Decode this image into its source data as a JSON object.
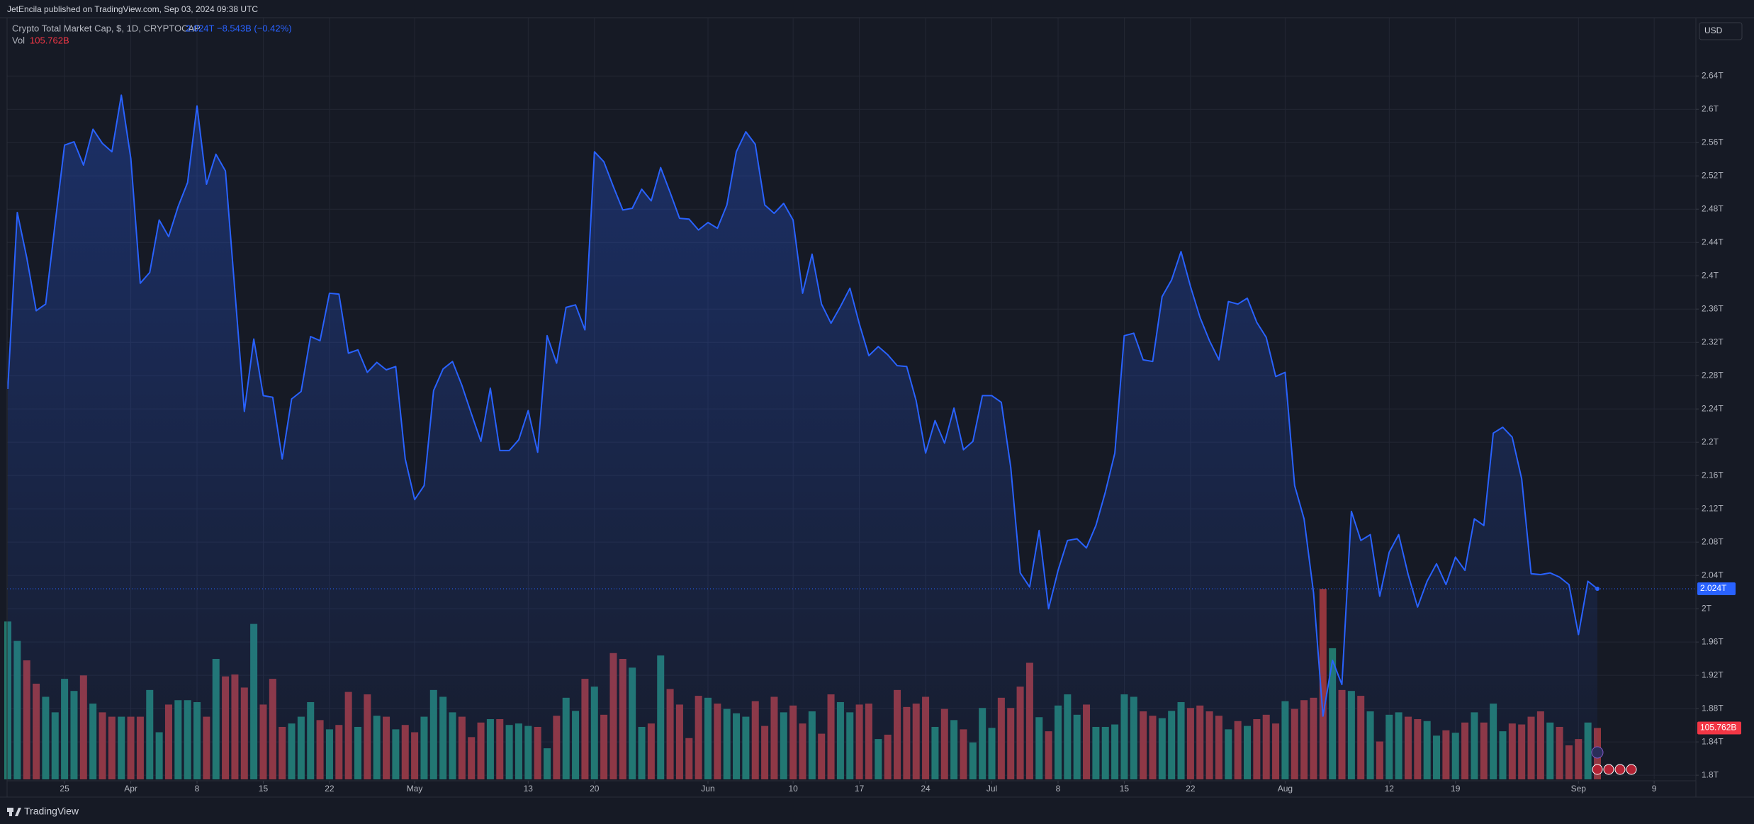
{
  "header": {
    "publisher": "JetEncila published on TradingView.com, Sep 03, 2024 09:38 UTC",
    "brand": "TradingView"
  },
  "chart_data": {
    "type": "area",
    "title": "Crypto Total Market Cap, $, 1D, CRYPTOCAP",
    "change": "−8.543B (−0.42%)",
    "currency": "USD",
    "grid": true,
    "x": [
      "2024-03-19",
      "2024-03-20",
      "2024-03-21",
      "2024-03-22",
      "2024-03-23",
      "2024-03-24",
      "2024-03-25",
      "2024-03-26",
      "2024-03-27",
      "2024-03-28",
      "2024-03-29",
      "2024-03-30",
      "2024-03-31",
      "2024-04-01",
      "2024-04-02",
      "2024-04-03",
      "2024-04-04",
      "2024-04-05",
      "2024-04-06",
      "2024-04-07",
      "2024-04-08",
      "2024-04-09",
      "2024-04-10",
      "2024-04-11",
      "2024-04-12",
      "2024-04-13",
      "2024-04-14",
      "2024-04-15",
      "2024-04-16",
      "2024-04-17",
      "2024-04-18",
      "2024-04-19",
      "2024-04-20",
      "2024-04-21",
      "2024-04-22",
      "2024-04-23",
      "2024-04-24",
      "2024-04-25",
      "2024-04-26",
      "2024-04-27",
      "2024-04-28",
      "2024-04-29",
      "2024-04-30",
      "2024-05-01",
      "2024-05-02",
      "2024-05-03",
      "2024-05-04",
      "2024-05-05",
      "2024-05-06",
      "2024-05-07",
      "2024-05-08",
      "2024-05-09",
      "2024-05-10",
      "2024-05-11",
      "2024-05-12",
      "2024-05-13",
      "2024-05-14",
      "2024-05-15",
      "2024-05-16",
      "2024-05-17",
      "2024-05-18",
      "2024-05-19",
      "2024-05-20",
      "2024-05-21",
      "2024-05-22",
      "2024-05-23",
      "2024-05-24",
      "2024-05-25",
      "2024-05-26",
      "2024-05-27",
      "2024-05-28",
      "2024-05-29",
      "2024-05-30",
      "2024-05-31",
      "2024-06-01",
      "2024-06-02",
      "2024-06-03",
      "2024-06-04",
      "2024-06-05",
      "2024-06-06",
      "2024-06-07",
      "2024-06-08",
      "2024-06-09",
      "2024-06-10",
      "2024-06-11",
      "2024-06-12",
      "2024-06-13",
      "2024-06-14",
      "2024-06-15",
      "2024-06-16",
      "2024-06-17",
      "2024-06-18",
      "2024-06-19",
      "2024-06-20",
      "2024-06-21",
      "2024-06-22",
      "2024-06-23",
      "2024-06-24",
      "2024-06-25",
      "2024-06-26",
      "2024-06-27",
      "2024-06-28",
      "2024-06-29",
      "2024-06-30",
      "2024-07-01",
      "2024-07-02",
      "2024-07-03",
      "2024-07-04",
      "2024-07-05",
      "2024-07-06",
      "2024-07-07",
      "2024-07-08",
      "2024-07-09",
      "2024-07-10",
      "2024-07-11",
      "2024-07-12",
      "2024-07-13",
      "2024-07-14",
      "2024-07-15",
      "2024-07-16",
      "2024-07-17",
      "2024-07-18",
      "2024-07-19",
      "2024-07-20",
      "2024-07-21",
      "2024-07-22",
      "2024-07-23",
      "2024-07-24",
      "2024-07-25",
      "2024-07-26",
      "2024-07-27",
      "2024-07-28",
      "2024-07-29",
      "2024-07-30",
      "2024-07-31",
      "2024-08-01",
      "2024-08-02",
      "2024-08-03",
      "2024-08-04",
      "2024-08-05",
      "2024-08-06",
      "2024-08-07",
      "2024-08-08",
      "2024-08-09",
      "2024-08-10",
      "2024-08-11",
      "2024-08-12",
      "2024-08-13",
      "2024-08-14",
      "2024-08-15",
      "2024-08-16",
      "2024-08-17",
      "2024-08-18",
      "2024-08-19",
      "2024-08-20",
      "2024-08-21",
      "2024-08-22",
      "2024-08-23",
      "2024-08-24",
      "2024-08-25",
      "2024-08-26",
      "2024-08-27",
      "2024-08-28",
      "2024-08-29",
      "2024-08-30",
      "2024-08-31",
      "2024-09-01",
      "2024-09-02",
      "2024-09-03"
    ],
    "series": [
      {
        "type": "area",
        "color": "#2962ff",
        "last_value_label": "2.024T",
        "values": [
          2.264,
          2.476,
          2.422,
          2.358,
          2.366,
          2.463,
          2.557,
          2.561,
          2.533,
          2.576,
          2.559,
          2.549,
          2.617,
          2.541,
          2.391,
          2.404,
          2.467,
          2.447,
          2.483,
          2.512,
          2.604,
          2.51,
          2.546,
          2.526,
          2.382,
          2.237,
          2.324,
          2.256,
          2.254,
          2.18,
          2.252,
          2.261,
          2.327,
          2.322,
          2.379,
          2.378,
          2.307,
          2.311,
          2.284,
          2.296,
          2.287,
          2.291,
          2.18,
          2.131,
          2.148,
          2.262,
          2.288,
          2.297,
          2.268,
          2.234,
          2.201,
          2.265,
          2.19,
          2.19,
          2.203,
          2.238,
          2.188,
          2.328,
          2.295,
          2.362,
          2.365,
          2.335,
          2.549,
          2.537,
          2.507,
          2.479,
          2.481,
          2.504,
          2.49,
          2.53,
          2.5,
          2.469,
          2.468,
          2.455,
          2.464,
          2.457,
          2.485,
          2.549,
          2.573,
          2.558,
          2.485,
          2.475,
          2.487,
          2.467,
          2.379,
          2.426,
          2.366,
          2.343,
          2.363,
          2.385,
          2.342,
          2.304,
          2.315,
          2.305,
          2.292,
          2.291,
          2.25,
          2.187,
          2.226,
          2.199,
          2.241,
          2.191,
          2.201,
          2.256,
          2.256,
          2.248,
          2.17,
          2.043,
          2.026,
          2.094,
          2.0,
          2.046,
          2.082,
          2.084,
          2.073,
          2.1,
          2.14,
          2.187,
          2.328,
          2.331,
          2.299,
          2.297,
          2.375,
          2.395,
          2.429,
          2.387,
          2.35,
          2.322,
          2.299,
          2.369,
          2.366,
          2.373,
          2.344,
          2.326,
          2.279,
          2.284,
          2.148,
          2.108,
          2.019,
          1.871,
          1.938,
          1.909,
          2.117,
          2.082,
          2.089,
          2.015,
          2.068,
          2.089,
          2.041,
          2.002,
          2.033,
          2.054,
          2.029,
          2.062,
          2.046,
          2.108,
          2.1,
          2.211,
          2.218,
          2.206,
          2.156,
          2.042,
          2.041,
          2.043,
          2.038,
          2.029,
          1.969,
          2.033,
          2.024
        ]
      },
      {
        "type": "volume",
        "name": "Vol",
        "up_color": "#22786c",
        "down_color": "#93363d",
        "label_color": "#f23645",
        "last_value_label": "105.762B",
        "values": [
          325,
          285,
          245,
          197,
          170,
          138,
          207,
          182,
          214,
          156,
          138,
          129,
          129,
          129,
          129,
          184,
          97,
          154,
          163,
          163,
          159,
          129,
          248,
          212,
          216,
          189,
          320,
          154,
          207,
          108,
          115,
          129,
          159,
          122,
          103,
          112,
          180,
          108,
          175,
          131,
          129,
          103,
          112,
          97,
          129,
          184,
          170,
          138,
          129,
          87,
          117,
          124,
          124,
          112,
          115,
          110,
          108,
          64,
          131,
          168,
          141,
          207,
          191,
          133,
          260,
          248,
          230,
          108,
          115,
          255,
          186,
          154,
          85,
          172,
          168,
          156,
          145,
          136,
          129,
          161,
          110,
          170,
          138,
          152,
          115,
          140,
          94,
          175,
          159,
          138,
          154,
          156,
          83,
          92,
          184,
          149,
          156,
          170,
          108,
          145,
          122,
          103,
          76,
          147,
          106,
          168,
          147,
          191,
          240,
          128,
          99,
          152,
          175,
          133,
          154,
          108,
          108,
          113,
          175,
          170,
          140,
          131,
          126,
          141,
          159,
          147,
          152,
          140,
          131,
          103,
          120,
          110,
          124,
          133,
          115,
          161,
          145,
          163,
          168,
          392,
          270,
          184,
          182,
          172,
          140,
          78,
          133,
          138,
          129,
          124,
          120,
          90,
          101,
          96,
          117,
          138,
          117,
          156,
          99,
          115,
          113,
          129,
          140,
          117,
          108,
          70,
          83,
          117,
          105.762
        ]
      }
    ],
    "ylim": [
      1.795,
      2.71
    ],
    "yticks": [
      {
        "value": 1.8,
        "label": "1.8T"
      },
      {
        "value": 1.84,
        "label": "1.84T"
      },
      {
        "value": 1.88,
        "label": "1.88T"
      },
      {
        "value": 1.92,
        "label": "1.92T"
      },
      {
        "value": 1.96,
        "label": "1.96T"
      },
      {
        "value": 2.0,
        "label": "2T"
      },
      {
        "value": 2.04,
        "label": "2.04T"
      },
      {
        "value": 2.08,
        "label": "2.08T"
      },
      {
        "value": 2.12,
        "label": "2.12T"
      },
      {
        "value": 2.16,
        "label": "2.16T"
      },
      {
        "value": 2.2,
        "label": "2.2T"
      },
      {
        "value": 2.24,
        "label": "2.24T"
      },
      {
        "value": 2.28,
        "label": "2.28T"
      },
      {
        "value": 2.32,
        "label": "2.32T"
      },
      {
        "value": 2.36,
        "label": "2.36T"
      },
      {
        "value": 2.4,
        "label": "2.4T"
      },
      {
        "value": 2.44,
        "label": "2.44T"
      },
      {
        "value": 2.48,
        "label": "2.48T"
      },
      {
        "value": 2.52,
        "label": "2.52T"
      },
      {
        "value": 2.56,
        "label": "2.56T"
      },
      {
        "value": 2.6,
        "label": "2.6T"
      },
      {
        "value": 2.64,
        "label": "2.64T"
      }
    ],
    "xticks": [
      {
        "value": "2024-03-25",
        "label": "25"
      },
      {
        "value": "2024-04-01",
        "label": "Apr"
      },
      {
        "value": "2024-04-08",
        "label": "8"
      },
      {
        "value": "2024-04-15",
        "label": "15"
      },
      {
        "value": "2024-04-22",
        "label": "22"
      },
      {
        "value": "2024-05-01",
        "label": "May"
      },
      {
        "value": "2024-05-13",
        "label": "13"
      },
      {
        "value": "2024-05-20",
        "label": "20"
      },
      {
        "value": "2024-06-01",
        "label": "Jun"
      },
      {
        "value": "2024-06-10",
        "label": "10"
      },
      {
        "value": "2024-06-17",
        "label": "17"
      },
      {
        "value": "2024-06-24",
        "label": "24"
      },
      {
        "value": "2024-07-01",
        "label": "Jul"
      },
      {
        "value": "2024-07-08",
        "label": "8"
      },
      {
        "value": "2024-07-15",
        "label": "15"
      },
      {
        "value": "2024-07-22",
        "label": "22"
      },
      {
        "value": "2024-08-01",
        "label": "Aug"
      },
      {
        "value": "2024-08-12",
        "label": "12"
      },
      {
        "value": "2024-08-19",
        "label": "19"
      },
      {
        "value": "2024-09-01",
        "label": "Sep"
      },
      {
        "value": "2024-09-09",
        "label": "9"
      }
    ]
  }
}
